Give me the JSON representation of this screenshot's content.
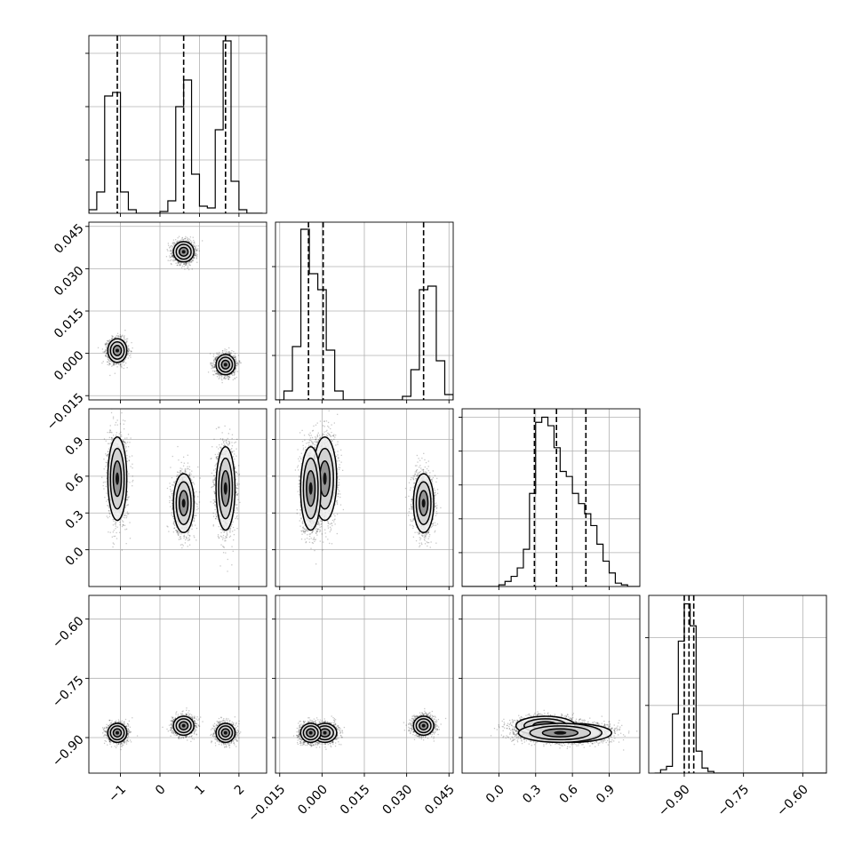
{
  "chart_data": {
    "type": "corner",
    "grid": true,
    "parameters": [
      {
        "range": [
          -1.8,
          2.7
        ],
        "ticks": [
          -1,
          0,
          1,
          2
        ],
        "tick_labels": [
          "−1",
          "0",
          "1",
          "2"
        ]
      },
      {
        "range": [
          -0.0165,
          0.0465
        ],
        "ticks": [
          -0.015,
          0.0,
          0.015,
          0.03,
          0.045
        ],
        "tick_labels": [
          "−0.015",
          "0.000",
          "0.015",
          "0.030",
          "0.045"
        ]
      },
      {
        "range": [
          -0.3,
          1.15
        ],
        "ticks": [
          0.0,
          0.3,
          0.6,
          0.9
        ],
        "tick_labels": [
          "0.0",
          "0.3",
          "0.6",
          "0.9"
        ]
      },
      {
        "range": [
          -0.99,
          -0.54
        ],
        "ticks": [
          -0.9,
          -0.75,
          -0.6
        ],
        "tick_labels": [
          "−0.90",
          "−0.75",
          "−0.60"
        ]
      }
    ],
    "diagonal": [
      {
        "bins_x": [
          -1.8,
          -1.6,
          -1.4,
          -1.2,
          -1.0,
          -0.8,
          -0.6,
          -0.4,
          -0.2,
          0.0,
          0.2,
          0.4,
          0.6,
          0.8,
          1.0,
          1.2,
          1.4,
          1.6,
          1.8,
          2.0,
          2.2,
          2.4,
          2.6
        ],
        "counts": [
          0.02,
          0.12,
          0.66,
          0.68,
          0.12,
          0.02,
          0,
          0,
          0,
          0.01,
          0.07,
          0.6,
          0.75,
          0.22,
          0.04,
          0.03,
          0.47,
          0.97,
          0.18,
          0.02,
          0,
          0
        ],
        "ymax": 1.0,
        "yticks": [
          0.3,
          0.6,
          0.9
        ],
        "quantiles": [
          -1.08,
          0.6,
          1.66
        ]
      },
      {
        "bins_x": [
          -0.0165,
          -0.0135,
          -0.0105,
          -0.0075,
          -0.0045,
          -0.0015,
          0.0015,
          0.0045,
          0.0075,
          0.0105,
          0.0135,
          0.0165,
          0.0195,
          0.0225,
          0.0255,
          0.0285,
          0.0315,
          0.0345,
          0.0375,
          0.0405,
          0.0435,
          0.0465
        ],
        "counts": [
          0,
          0.05,
          0.3,
          0.96,
          0.71,
          0.62,
          0.28,
          0.05,
          0,
          0,
          0,
          0,
          0,
          0,
          0,
          0.02,
          0.17,
          0.62,
          0.64,
          0.22,
          0.03
        ],
        "ymax": 1.0,
        "yticks": [
          0.25,
          0.5,
          0.75
        ],
        "quantiles": [
          -0.0048,
          0.0004,
          0.036
        ]
      },
      {
        "bins_x": [
          -0.3,
          -0.25,
          -0.2,
          -0.15,
          -0.1,
          -0.05,
          0.0,
          0.05,
          0.1,
          0.15,
          0.2,
          0.25,
          0.3,
          0.35,
          0.4,
          0.45,
          0.5,
          0.55,
          0.6,
          0.65,
          0.7,
          0.75,
          0.8,
          0.85,
          0.9,
          0.95,
          1.0,
          1.05,
          1.1,
          1.15
        ],
        "counts": [
          0,
          0,
          0,
          0,
          0,
          0,
          0.01,
          0.03,
          0.06,
          0.11,
          0.22,
          0.55,
          0.97,
          1.0,
          0.95,
          0.82,
          0.68,
          0.65,
          0.55,
          0.49,
          0.43,
          0.36,
          0.25,
          0.15,
          0.08,
          0.02,
          0.01,
          0,
          0
        ],
        "ymax": 1.05,
        "yticks": [
          0.2,
          0.4,
          0.6,
          0.8,
          1.0
        ],
        "quantiles": [
          0.29,
          0.47,
          0.71
        ]
      },
      {
        "bins_x": [
          -0.975,
          -0.96,
          -0.945,
          -0.93,
          -0.915,
          -0.9,
          -0.885,
          -0.87,
          -0.855,
          -0.84,
          -0.825,
          -0.81,
          -0.795,
          -0.78,
          -0.765,
          -0.75,
          -0.735,
          -0.72,
          -0.705,
          -0.69,
          -0.675,
          -0.66,
          -0.645,
          -0.63,
          -0.615,
          -0.6,
          -0.585,
          -0.57,
          -0.555,
          -0.54
        ],
        "counts": [
          0,
          0.02,
          0.04,
          0.35,
          0.78,
          1.0,
          0.87,
          0.13,
          0.03,
          0.01,
          0,
          0,
          0,
          0,
          0,
          0,
          0,
          0,
          0,
          0,
          0,
          0,
          0,
          0,
          0,
          0,
          0,
          0,
          0
        ],
        "ymax": 1.05,
        "yticks": [
          0.4,
          0.8
        ],
        "quantiles": [
          -0.9,
          -0.888,
          -0.876
        ]
      }
    ],
    "clusters": [
      {
        "means": [
          -1.08,
          0.001,
          0.58,
          -0.888
        ],
        "sd": [
          0.12,
          0.0021,
          0.17,
          0.012
        ]
      },
      {
        "means": [
          0.6,
          0.036,
          0.38,
          -0.87
        ],
        "sd": [
          0.13,
          0.0018,
          0.12,
          0.012
        ]
      },
      {
        "means": [
          1.66,
          -0.004,
          0.5,
          -0.888
        ],
        "sd": [
          0.12,
          0.0018,
          0.17,
          0.012
        ]
      }
    ]
  }
}
